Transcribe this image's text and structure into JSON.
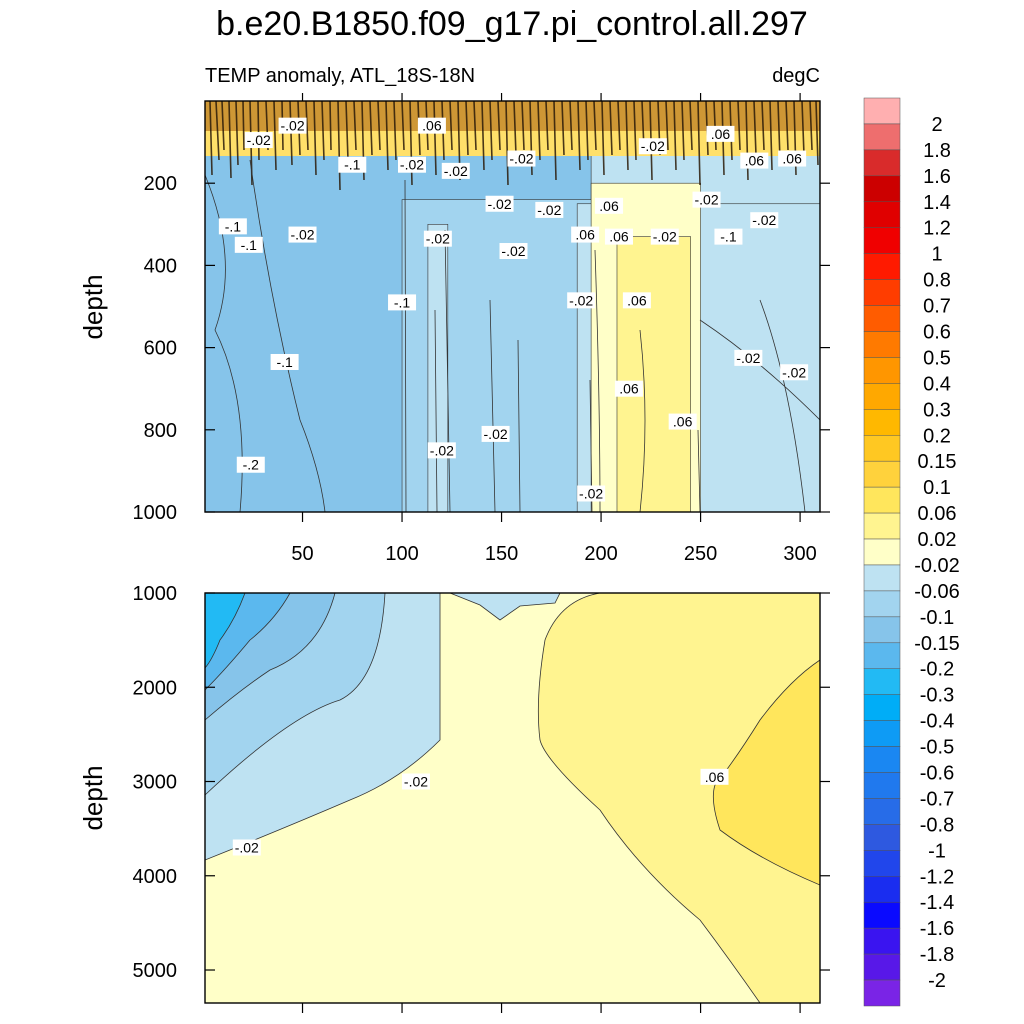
{
  "chart_data": {
    "type": "heatmap",
    "title": "b.e20.B1850.f09_g17.pi_control.all.297",
    "subtitle_left": "TEMP anomaly, ATL_18S-18N",
    "subtitle_right": "degC",
    "xlabel": "",
    "ylabel": "depth",
    "x_ticks": [
      50,
      100,
      150,
      200,
      250,
      300
    ],
    "x_range": [
      1,
      310
    ],
    "panels": [
      {
        "name": "upper",
        "ylim": [
          0,
          1000
        ],
        "y_ticks": [
          200,
          400,
          600,
          800,
          1000
        ],
        "bands": [
          {
            "value": -0.3,
            "regions": [
              {
                "x": [
                  1,
                  28
                ],
                "top": 650,
                "bottom": 1000
              }
            ]
          },
          {
            "value": -0.2,
            "regions": [
              {
                "x": [
                  1,
                  60
                ],
                "top": 290,
                "bottom": 1000
              }
            ]
          },
          {
            "value": -0.15,
            "regions": [
              {
                "x": [
                  1,
                  100
                ],
                "top": 140,
                "bottom": 1000
              }
            ]
          },
          {
            "value": -0.1,
            "regions": [
              {
                "x": [
                  1,
                  195
                ],
                "top": 130,
                "bottom": 1000
              }
            ]
          },
          {
            "value": -0.06,
            "regions": [
              {
                "x": [
                  100,
                  198
                ],
                "top": 240,
                "bottom": 1000
              }
            ]
          },
          {
            "value": -0.02,
            "regions": [
              {
                "x": [
                  113,
                  123
                ],
                "top": 300,
                "bottom": 1000
              },
              {
                "x": [
                  188,
                  310
                ],
                "top": 250,
                "bottom": 1000
              }
            ]
          },
          {
            "value": 0.02,
            "regions": [
              {
                "x": [
                  195,
                  250
                ],
                "top": 200,
                "bottom": 1000
              }
            ]
          },
          {
            "value": 0.06,
            "regions": [
              {
                "x": [
                  208,
                  245
                ],
                "top": 330,
                "bottom": 1000
              }
            ]
          }
        ],
        "contour_labels": [
          {
            "text": "-.02",
            "x": 45,
            "depth": 60
          },
          {
            "text": "-.02",
            "x": 28,
            "depth": 95
          },
          {
            "text": ".06",
            "x": 115,
            "depth": 60
          },
          {
            "text": "-.1",
            "x": 75,
            "depth": 155
          },
          {
            "text": "-.02",
            "x": 105,
            "depth": 155
          },
          {
            "text": "-.02",
            "x": 127,
            "depth": 170
          },
          {
            "text": "-.02",
            "x": 160,
            "depth": 140
          },
          {
            "text": "-.02",
            "x": 226,
            "depth": 110
          },
          {
            "text": ".06",
            "x": 260,
            "depth": 80
          },
          {
            "text": ".06",
            "x": 277,
            "depth": 145
          },
          {
            "text": ".06",
            "x": 296,
            "depth": 140
          },
          {
            "text": "-.1",
            "x": 15,
            "depth": 305
          },
          {
            "text": "-.1",
            "x": 23,
            "depth": 350
          },
          {
            "text": "-.02",
            "x": 50,
            "depth": 325
          },
          {
            "text": "-.02",
            "x": 118,
            "depth": 335
          },
          {
            "text": "-.02",
            "x": 149,
            "depth": 250
          },
          {
            "text": "-.02",
            "x": 156,
            "depth": 365
          },
          {
            "text": "-.02",
            "x": 174,
            "depth": 265
          },
          {
            "text": ".06",
            "x": 204,
            "depth": 255
          },
          {
            "text": ".06",
            "x": 192,
            "depth": 325
          },
          {
            "text": ".06",
            "x": 209,
            "depth": 330
          },
          {
            "text": "-.02",
            "x": 232,
            "depth": 330
          },
          {
            "text": "-.02",
            "x": 253,
            "depth": 240
          },
          {
            "text": "-.1",
            "x": 264,
            "depth": 330
          },
          {
            "text": "-.02",
            "x": 282,
            "depth": 290
          },
          {
            "text": "-.02",
            "x": 190,
            "depth": 485
          },
          {
            "text": "-.1",
            "x": 100,
            "depth": 490
          },
          {
            "text": ".06",
            "x": 218,
            "depth": 485
          },
          {
            "text": "-.1",
            "x": 41,
            "depth": 635
          },
          {
            "text": "-.02",
            "x": 274,
            "depth": 625
          },
          {
            "text": "-.02",
            "x": 297,
            "depth": 660
          },
          {
            "text": ".06",
            "x": 214,
            "depth": 700
          },
          {
            "text": ".06",
            "x": 241,
            "depth": 780
          },
          {
            "text": "-.02",
            "x": 120,
            "depth": 850
          },
          {
            "text": "-.02",
            "x": 147,
            "depth": 810
          },
          {
            "text": "-.2",
            "x": 24,
            "depth": 885
          },
          {
            "text": "-.02",
            "x": 195,
            "depth": 955
          }
        ]
      },
      {
        "name": "lower",
        "ylim": [
          1000,
          5350
        ],
        "y_ticks": [
          1000,
          2000,
          3000,
          4000,
          5000
        ],
        "contour_labels": [
          {
            "text": "-.02",
            "x": 107,
            "depth": 3000
          },
          {
            "text": "-.02",
            "x": 22,
            "depth": 3700
          },
          {
            "text": ".06",
            "x": 257,
            "depth": 2950
          }
        ]
      }
    ],
    "colorbar": {
      "labels": [
        "2",
        "1.8",
        "1.6",
        "1.4",
        "1.2",
        "1",
        "0.8",
        "0.7",
        "0.6",
        "0.5",
        "0.4",
        "0.3",
        "0.2",
        "0.15",
        "0.1",
        "0.06",
        "0.02",
        "-0.02",
        "-0.06",
        "-0.1",
        "-0.15",
        "-0.2",
        "-0.3",
        "-0.4",
        "-0.5",
        "-0.6",
        "-0.7",
        "-0.8",
        "-1",
        "-1.2",
        "-1.4",
        "-1.6",
        "-1.8",
        "-2"
      ],
      "colors": [
        "#FFAFB0",
        "#EE6E6E",
        "#D92B2B",
        "#CC0000",
        "#E00000",
        "#F00000",
        "#FF1A00",
        "#FF3D00",
        "#FF5C00",
        "#FF7A00",
        "#FF9600",
        "#FFA800",
        "#FFB800",
        "#FFC822",
        "#FFD23C",
        "#FFE65C",
        "#FFF490",
        "#FFFFC8",
        "#BEE2F2",
        "#A2D4EF",
        "#86C4EA",
        "#5BB8EE",
        "#22BAF4",
        "#00ADF7",
        "#0E9BF5",
        "#1A87F2",
        "#2079EE",
        "#276CE8",
        "#2E59E0",
        "#2146EB",
        "#1A2DF0",
        "#0A0AFF",
        "#3A14F0",
        "#5818E8",
        "#7A24E6"
      ]
    }
  }
}
